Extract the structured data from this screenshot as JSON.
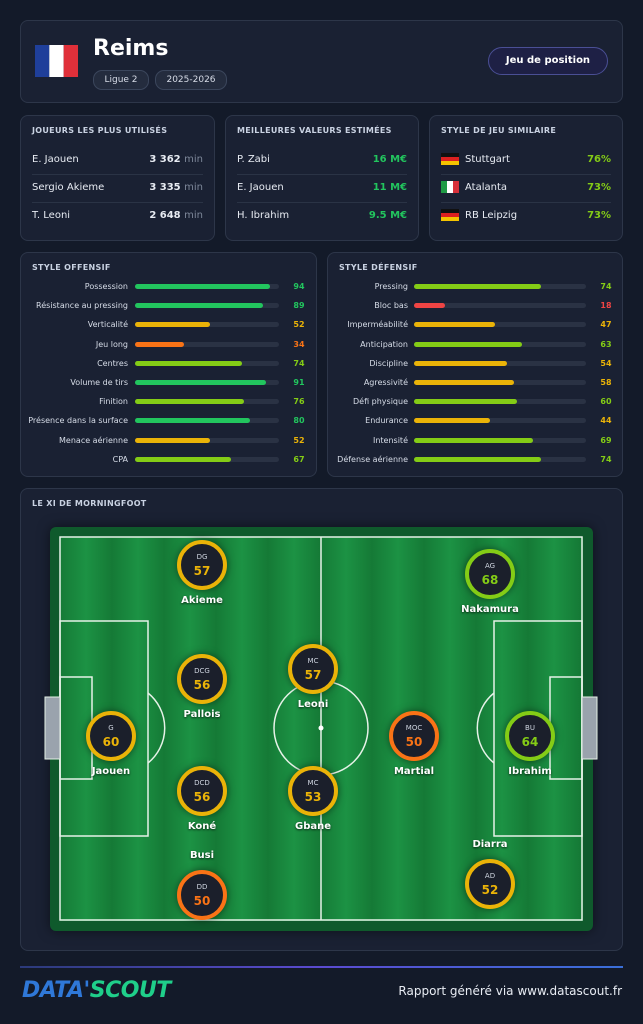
{
  "header": {
    "team": "Reims",
    "tags": [
      "Ligue 2",
      "2025-2026"
    ],
    "button": "Jeu de position"
  },
  "most_used": {
    "title": "JOUEURS LES PLUS UTILISÉS",
    "rows": [
      {
        "name": "E. Jaouen",
        "value": "3 362",
        "unit": "min"
      },
      {
        "name": "Sergio Akieme",
        "value": "3 335",
        "unit": "min"
      },
      {
        "name": "T. Leoni",
        "value": "2 648",
        "unit": "min"
      }
    ]
  },
  "top_values": {
    "title": "MEILLEURES VALEURS ESTIMÉES",
    "rows": [
      {
        "name": "P. Zabi",
        "value": "16 M€"
      },
      {
        "name": "E. Jaouen",
        "value": "11 M€"
      },
      {
        "name": "H. Ibrahim",
        "value": "9.5 M€"
      }
    ]
  },
  "similar_style": {
    "title": "STYLE DE JEU SIMILAIRE",
    "rows": [
      {
        "name": "Stuttgart",
        "value": "76%"
      },
      {
        "name": "Atalanta",
        "value": "73%"
      },
      {
        "name": "RB Leipzig",
        "value": "73%"
      }
    ]
  },
  "offensive": {
    "title": "STYLE OFFENSIF",
    "rows": [
      {
        "label": "Possession",
        "value": 94,
        "color": "#22c55e"
      },
      {
        "label": "Résistance au pressing",
        "value": 89,
        "color": "#22c55e"
      },
      {
        "label": "Verticalité",
        "value": 52,
        "color": "#eab308"
      },
      {
        "label": "Jeu long",
        "value": 34,
        "color": "#f97316"
      },
      {
        "label": "Centres",
        "value": 74,
        "color": "#84cc16"
      },
      {
        "label": "Volume de tirs",
        "value": 91,
        "color": "#22c55e"
      },
      {
        "label": "Finition",
        "value": 76,
        "color": "#84cc16"
      },
      {
        "label": "Présence dans la surface",
        "value": 80,
        "color": "#22c55e"
      },
      {
        "label": "Menace aérienne",
        "value": 52,
        "color": "#eab308"
      },
      {
        "label": "CPA",
        "value": 67,
        "color": "#84cc16"
      }
    ]
  },
  "defensive": {
    "title": "STYLE DÉFENSIF",
    "rows": [
      {
        "label": "Pressing",
        "value": 74,
        "color": "#84cc16"
      },
      {
        "label": "Bloc bas",
        "value": 18,
        "color": "#ef4444"
      },
      {
        "label": "Imperméabilité",
        "value": 47,
        "color": "#eab308"
      },
      {
        "label": "Anticipation",
        "value": 63,
        "color": "#84cc16"
      },
      {
        "label": "Discipline",
        "value": 54,
        "color": "#eab308"
      },
      {
        "label": "Agressivité",
        "value": 58,
        "color": "#eab308"
      },
      {
        "label": "Défi physique",
        "value": 60,
        "color": "#84cc16"
      },
      {
        "label": "Endurance",
        "value": 44,
        "color": "#eab308"
      },
      {
        "label": "Intensité",
        "value": 69,
        "color": "#84cc16"
      },
      {
        "label": "Défense aérienne",
        "value": 74,
        "color": "#84cc16"
      }
    ]
  },
  "lineup": {
    "title": "LE XI DE MORNINGFOOT",
    "players": [
      {
        "position": "G",
        "rating": 60,
        "name": "Jaouen",
        "color": "#eab308"
      },
      {
        "position": "DG",
        "rating": 57,
        "name": "Akieme",
        "color": "#eab308"
      },
      {
        "position": "DCG",
        "rating": 56,
        "name": "Pallois",
        "color": "#eab308"
      },
      {
        "position": "DCD",
        "rating": 56,
        "name": "Koné",
        "color": "#eab308"
      },
      {
        "position": "DD",
        "rating": 50,
        "name": "Busi",
        "color": "#f97316"
      },
      {
        "position": "MC",
        "rating": 57,
        "name": "Leoni",
        "color": "#eab308"
      },
      {
        "position": "MC",
        "rating": 53,
        "name": "Gbane",
        "color": "#eab308"
      },
      {
        "position": "MOC",
        "rating": 50,
        "name": "Martial",
        "color": "#f97316"
      },
      {
        "position": "AG",
        "rating": 68,
        "name": "Nakamura",
        "color": "#84cc16"
      },
      {
        "position": "BU",
        "rating": 64,
        "name": "Ibrahim",
        "color": "#84cc16"
      },
      {
        "position": "AD",
        "rating": 52,
        "name": "Diarra",
        "color": "#eab308"
      }
    ]
  },
  "footer": {
    "logo_left": "DATA'",
    "logo_right": "SCOUT",
    "text": "Rapport généré via www.datascout.fr"
  }
}
